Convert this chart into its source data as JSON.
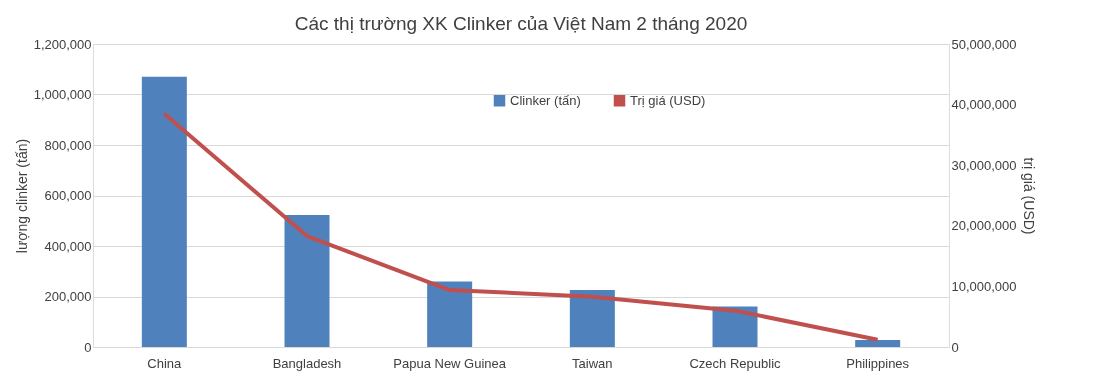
{
  "chart_data": {
    "type": "bar",
    "title": "Các thị trường XK Clinker của Việt Nam 2 tháng 2020",
    "ylabel": "lượng clinker (tấn)",
    "y2label": "trị giá (USD)",
    "categories": [
      "China",
      "Bangladesh",
      "Papua New Guinea",
      "Taiwan",
      "Czech Republic",
      "Philippines"
    ],
    "series": [
      {
        "name": "Clinker (tấn)",
        "color": "#4f81bd",
        "values": [
          1070000,
          523000,
          259000,
          226000,
          160000,
          28000
        ]
      },
      {
        "name": "Trị giá (USD)",
        "type": "line",
        "axis": "y2",
        "color": "#c0504d",
        "values": [
          38500000,
          18300000,
          9400000,
          8300000,
          6000000,
          1200000
        ]
      }
    ],
    "ylim": [
      0,
      1200000
    ],
    "yticks": [
      0,
      {
        "value": 200000,
        "label": "200,000"
      },
      {
        "value": 400000,
        "label": "400,000"
      },
      {
        "value": 600000,
        "label": "600,000"
      },
      {
        "value": 800000,
        "label": "800,000"
      },
      {
        "value": 1000000,
        "label": "1,000,000"
      },
      {
        "value": 1200000,
        "label": "1,200,000"
      }
    ],
    "y2lim": [
      0,
      50000000
    ],
    "y2ticks": [
      0,
      {
        "value": 10000000,
        "label": "10,000,000"
      },
      {
        "value": 20000000,
        "label": "20,000,000"
      },
      {
        "value": 30000000,
        "label": "30,000,000"
      },
      {
        "value": 40000000,
        "label": "40,000,000"
      },
      {
        "value": 50000000,
        "label": "50,000,000"
      }
    ],
    "grid": "y",
    "legend": "top",
    "marker": "none",
    "line_style": "solid"
  }
}
